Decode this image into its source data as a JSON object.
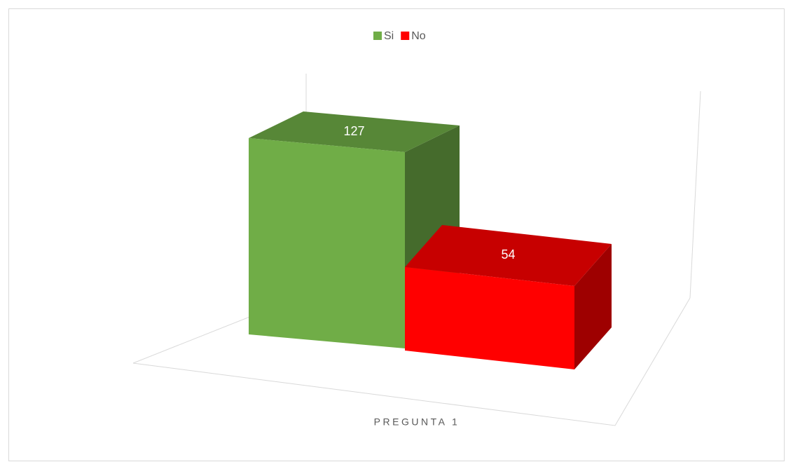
{
  "chart_data": {
    "type": "bar3d",
    "categories": [
      "PREGUNTA 1"
    ],
    "series": [
      {
        "name": "Si",
        "color": "#70ad47",
        "values": [
          127
        ]
      },
      {
        "name": "No",
        "color": "#ff0000",
        "values": [
          54
        ]
      }
    ],
    "legend": "top"
  }
}
